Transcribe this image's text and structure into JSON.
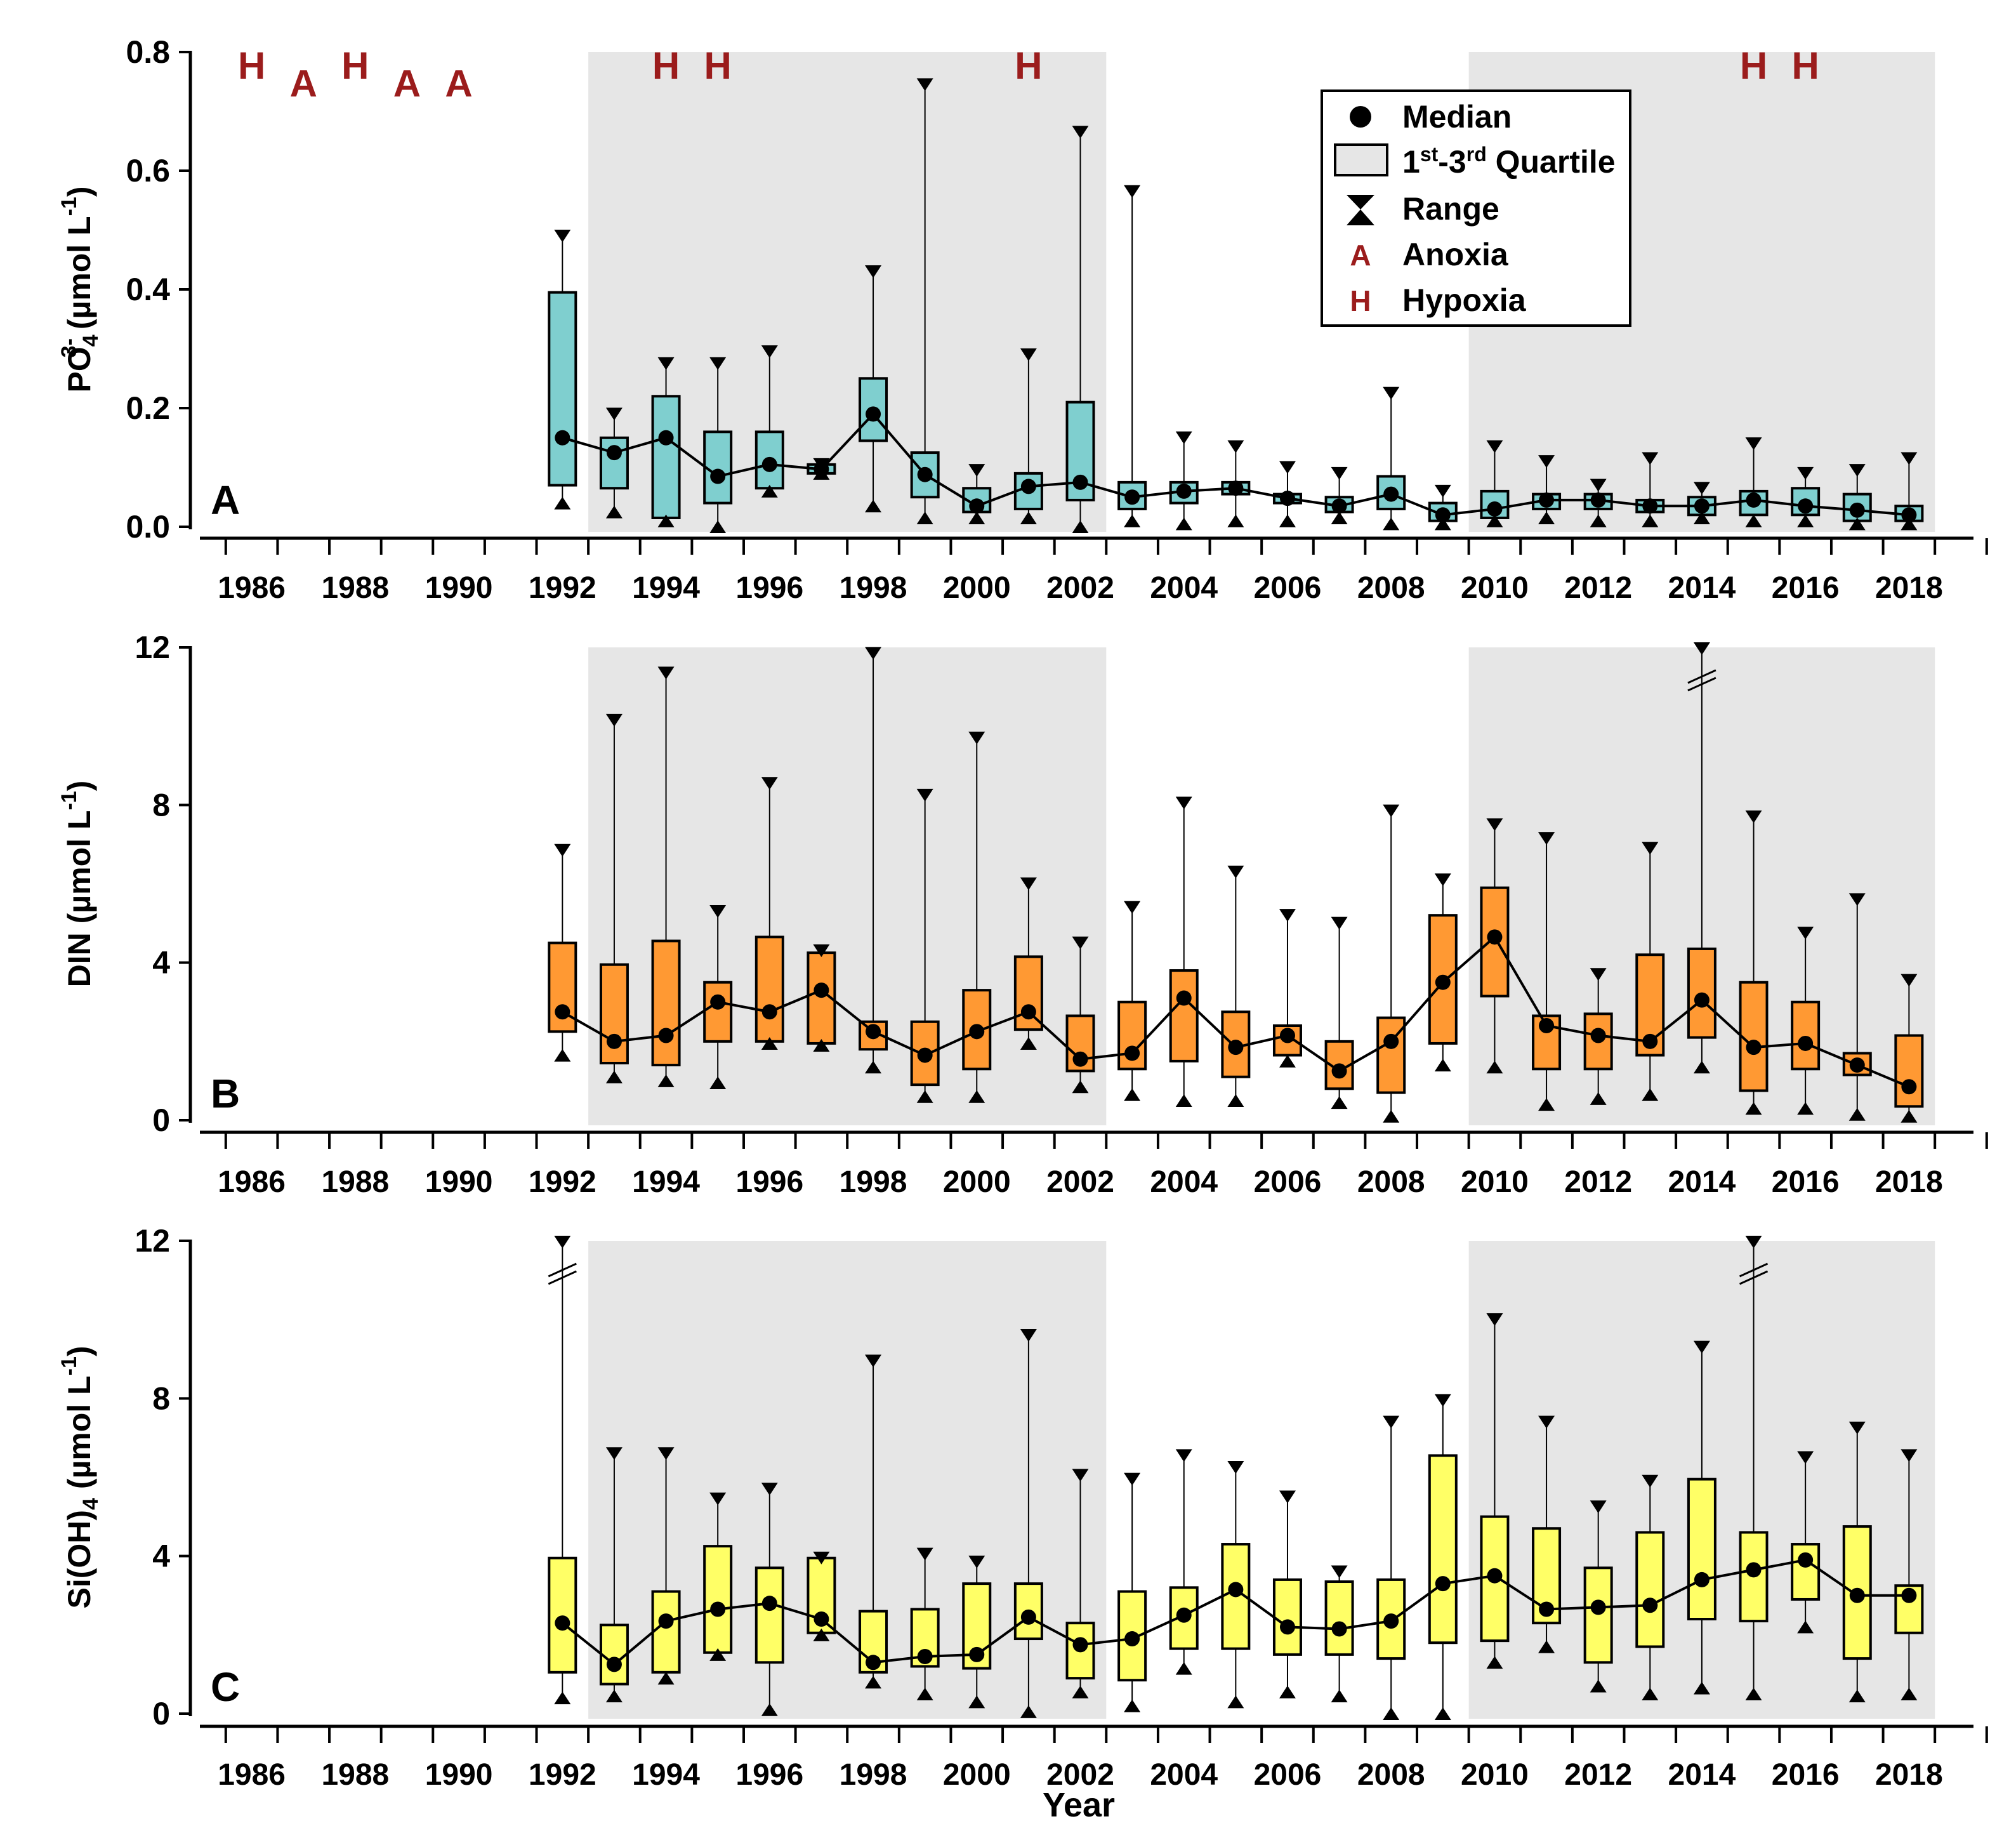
{
  "chart_data": [
    {
      "type": "box",
      "panel_label": "A",
      "ylabel_main": "PO",
      "ylabel_sub": "4",
      "ylabel_sup": "3-",
      "ylabel_rest": " (µmol L",
      "ylabel_unit_sup": "-1",
      "ylabel_close": ")",
      "ylim": [
        0,
        0.8
      ],
      "yticks": [
        "0.0",
        "0.2",
        "0.4",
        "0.6",
        "0.8"
      ],
      "ytick_values": [
        0,
        0.2,
        0.4,
        0.6,
        0.8
      ],
      "box_color": "#7fcfcf",
      "series": [
        {
          "year": 1992,
          "q1": 0.07,
          "q3": 0.395,
          "median": 0.15,
          "min": 0.04,
          "max": 0.49
        },
        {
          "year": 1993,
          "q1": 0.065,
          "q3": 0.15,
          "median": 0.125,
          "min": 0.025,
          "max": 0.19
        },
        {
          "year": 1994,
          "q1": 0.015,
          "q3": 0.22,
          "median": 0.15,
          "min": 0.01,
          "max": 0.275
        },
        {
          "year": 1995,
          "q1": 0.04,
          "q3": 0.16,
          "median": 0.085,
          "min": 0.0,
          "max": 0.275
        },
        {
          "year": 1996,
          "q1": 0.065,
          "q3": 0.16,
          "median": 0.105,
          "min": 0.06,
          "max": 0.295
        },
        {
          "year": 1997,
          "q1": 0.09,
          "q3": 0.105,
          "median": 0.097,
          "min": 0.09,
          "max": 0.105
        },
        {
          "year": 1998,
          "q1": 0.145,
          "q3": 0.25,
          "median": 0.19,
          "min": 0.035,
          "max": 0.43
        },
        {
          "year": 1999,
          "q1": 0.05,
          "q3": 0.125,
          "median": 0.088,
          "min": 0.015,
          "max": 0.745
        },
        {
          "year": 2000,
          "q1": 0.025,
          "q3": 0.065,
          "median": 0.035,
          "min": 0.015,
          "max": 0.095
        },
        {
          "year": 2001,
          "q1": 0.03,
          "q3": 0.09,
          "median": 0.068,
          "min": 0.015,
          "max": 0.29
        },
        {
          "year": 2002,
          "q1": 0.045,
          "q3": 0.21,
          "median": 0.075,
          "min": 0.0,
          "max": 0.665
        },
        {
          "year": 2003,
          "q1": 0.03,
          "q3": 0.075,
          "median": 0.05,
          "min": 0.01,
          "max": 0.565
        },
        {
          "year": 2004,
          "q1": 0.04,
          "q3": 0.075,
          "median": 0.06,
          "min": 0.005,
          "max": 0.15
        },
        {
          "year": 2005,
          "q1": 0.055,
          "q3": 0.075,
          "median": 0.065,
          "min": 0.01,
          "max": 0.135
        },
        {
          "year": 2006,
          "q1": 0.04,
          "q3": 0.055,
          "median": 0.048,
          "min": 0.01,
          "max": 0.1
        },
        {
          "year": 2007,
          "q1": 0.025,
          "q3": 0.05,
          "median": 0.035,
          "min": 0.015,
          "max": 0.09
        },
        {
          "year": 2008,
          "q1": 0.03,
          "q3": 0.085,
          "median": 0.055,
          "min": 0.005,
          "max": 0.225
        },
        {
          "year": 2009,
          "q1": 0.01,
          "q3": 0.04,
          "median": 0.02,
          "min": 0.005,
          "max": 0.06
        },
        {
          "year": 2010,
          "q1": 0.015,
          "q3": 0.06,
          "median": 0.03,
          "min": 0.01,
          "max": 0.135
        },
        {
          "year": 2011,
          "q1": 0.03,
          "q3": 0.055,
          "median": 0.045,
          "min": 0.015,
          "max": 0.11
        },
        {
          "year": 2012,
          "q1": 0.03,
          "q3": 0.055,
          "median": 0.045,
          "min": 0.01,
          "max": 0.07
        },
        {
          "year": 2013,
          "q1": 0.025,
          "q3": 0.045,
          "median": 0.035,
          "min": 0.01,
          "max": 0.115
        },
        {
          "year": 2014,
          "q1": 0.02,
          "q3": 0.05,
          "median": 0.035,
          "min": 0.015,
          "max": 0.065
        },
        {
          "year": 2015,
          "q1": 0.02,
          "q3": 0.06,
          "median": 0.045,
          "min": 0.01,
          "max": 0.14
        },
        {
          "year": 2016,
          "q1": 0.02,
          "q3": 0.065,
          "median": 0.035,
          "min": 0.01,
          "max": 0.09
        },
        {
          "year": 2017,
          "q1": 0.01,
          "q3": 0.055,
          "median": 0.028,
          "min": 0.005,
          "max": 0.095
        },
        {
          "year": 2018,
          "q1": 0.01,
          "q3": 0.035,
          "median": 0.02,
          "min": 0.005,
          "max": 0.115
        }
      ],
      "events": [
        {
          "year": 1986,
          "code": "H"
        },
        {
          "year": 1987,
          "code": "A"
        },
        {
          "year": 1988,
          "code": "H"
        },
        {
          "year": 1989,
          "code": "A"
        },
        {
          "year": 1990,
          "code": "A"
        },
        {
          "year": 1994,
          "code": "H"
        },
        {
          "year": 1995,
          "code": "H"
        },
        {
          "year": 2001,
          "code": "H"
        },
        {
          "year": 2015,
          "code": "H"
        },
        {
          "year": 2016,
          "code": "H"
        }
      ],
      "breaks": []
    },
    {
      "type": "box",
      "panel_label": "B",
      "ylabel_main": "DIN (µmol L",
      "ylabel_sub": "",
      "ylabel_sup": "",
      "ylabel_rest": "",
      "ylabel_unit_sup": "-1",
      "ylabel_close": ")",
      "ylim": [
        0,
        12
      ],
      "yticks": [
        "0",
        "4",
        "8",
        "12"
      ],
      "ytick_values": [
        0,
        4,
        8,
        12
      ],
      "box_color": "#ff9933",
      "series": [
        {
          "year": 1992,
          "q1": 2.25,
          "q3": 4.5,
          "median": 2.75,
          "min": 1.65,
          "max": 6.85
        },
        {
          "year": 1993,
          "q1": 1.45,
          "q3": 3.95,
          "median": 2.0,
          "min": 1.1,
          "max": 10.15
        },
        {
          "year": 1994,
          "q1": 1.4,
          "q3": 4.55,
          "median": 2.15,
          "min": 1.0,
          "max": 11.35
        },
        {
          "year": 1995,
          "q1": 2.0,
          "q3": 3.5,
          "median": 3.0,
          "min": 0.95,
          "max": 5.3
        },
        {
          "year": 1996,
          "q1": 2.0,
          "q3": 4.65,
          "median": 2.75,
          "min": 1.95,
          "max": 8.55
        },
        {
          "year": 1997,
          "q1": 1.95,
          "q3": 4.25,
          "median": 3.3,
          "min": 1.9,
          "max": 4.3
        },
        {
          "year": 1998,
          "q1": 1.8,
          "q3": 2.5,
          "median": 2.25,
          "min": 1.35,
          "max": 11.85
        },
        {
          "year": 1999,
          "q1": 0.9,
          "q3": 2.5,
          "median": 1.65,
          "min": 0.6,
          "max": 8.25
        },
        {
          "year": 2000,
          "q1": 1.3,
          "q3": 3.3,
          "median": 2.25,
          "min": 0.6,
          "max": 9.7
        },
        {
          "year": 2001,
          "q1": 2.3,
          "q3": 4.15,
          "median": 2.75,
          "min": 1.95,
          "max": 6.0
        },
        {
          "year": 2002,
          "q1": 1.25,
          "q3": 2.65,
          "median": 1.55,
          "min": 0.85,
          "max": 4.5
        },
        {
          "year": 2003,
          "q1": 1.3,
          "q3": 3.0,
          "median": 1.7,
          "min": 0.65,
          "max": 5.4
        },
        {
          "year": 2004,
          "q1": 1.5,
          "q3": 3.8,
          "median": 3.1,
          "min": 0.5,
          "max": 8.05
        },
        {
          "year": 2005,
          "q1": 1.1,
          "q3": 2.75,
          "median": 1.85,
          "min": 0.5,
          "max": 6.3
        },
        {
          "year": 2006,
          "q1": 1.65,
          "q3": 2.4,
          "median": 2.15,
          "min": 1.5,
          "max": 5.2
        },
        {
          "year": 2007,
          "q1": 0.8,
          "q3": 2.0,
          "median": 1.25,
          "min": 0.45,
          "max": 5.0
        },
        {
          "year": 2008,
          "q1": 0.7,
          "q3": 2.6,
          "median": 2.0,
          "min": 0.1,
          "max": 7.85
        },
        {
          "year": 2009,
          "q1": 1.95,
          "q3": 5.2,
          "median": 3.5,
          "min": 1.4,
          "max": 6.1
        },
        {
          "year": 2010,
          "q1": 3.15,
          "q3": 5.9,
          "median": 4.65,
          "min": 1.35,
          "max": 7.5
        },
        {
          "year": 2011,
          "q1": 1.3,
          "q3": 2.65,
          "median": 2.4,
          "min": 0.4,
          "max": 7.15
        },
        {
          "year": 2012,
          "q1": 1.3,
          "q3": 2.7,
          "median": 2.15,
          "min": 0.55,
          "max": 3.7
        },
        {
          "year": 2013,
          "q1": 1.65,
          "q3": 4.2,
          "median": 2.0,
          "min": 0.65,
          "max": 6.9
        },
        {
          "year": 2014,
          "q1": 2.1,
          "q3": 4.35,
          "median": 3.05,
          "min": 1.35,
          "max": 12.0
        },
        {
          "year": 2015,
          "q1": 0.75,
          "q3": 3.5,
          "median": 1.85,
          "min": 0.3,
          "max": 7.7
        },
        {
          "year": 2016,
          "q1": 1.3,
          "q3": 3.0,
          "median": 1.95,
          "min": 0.3,
          "max": 4.75
        },
        {
          "year": 2017,
          "q1": 1.15,
          "q3": 1.7,
          "median": 1.4,
          "min": 0.15,
          "max": 5.6
        },
        {
          "year": 2018,
          "q1": 0.35,
          "q3": 2.15,
          "median": 0.85,
          "min": 0.1,
          "max": 3.55
        }
      ],
      "events": [],
      "breaks": [
        2014
      ]
    },
    {
      "type": "box",
      "panel_label": "C",
      "ylabel_main": "Si(OH)",
      "ylabel_sub": "4",
      "ylabel_sup": "",
      "ylabel_rest": " (µmol L",
      "ylabel_unit_sup": "-1",
      "ylabel_close": ")",
      "ylim": [
        0,
        12
      ],
      "yticks": [
        "0",
        "4",
        "8",
        "12"
      ],
      "ytick_values": [
        0,
        4,
        8,
        12
      ],
      "box_color": "#ffff66",
      "series": [
        {
          "year": 1992,
          "q1": 1.05,
          "q3": 3.95,
          "median": 2.3,
          "min": 0.4,
          "max": 12.0
        },
        {
          "year": 1993,
          "q1": 0.75,
          "q3": 2.25,
          "median": 1.25,
          "min": 0.45,
          "max": 6.6
        },
        {
          "year": 1994,
          "q1": 1.05,
          "q3": 3.1,
          "median": 2.35,
          "min": 0.9,
          "max": 6.6
        },
        {
          "year": 1995,
          "q1": 1.55,
          "q3": 4.25,
          "median": 2.65,
          "min": 1.5,
          "max": 5.45
        },
        {
          "year": 1996,
          "q1": 1.3,
          "q3": 3.7,
          "median": 2.8,
          "min": 0.1,
          "max": 5.7
        },
        {
          "year": 1997,
          "q1": 2.05,
          "q3": 3.95,
          "median": 2.4,
          "min": 2.0,
          "max": 3.95
        },
        {
          "year": 1998,
          "q1": 1.05,
          "q3": 2.6,
          "median": 1.3,
          "min": 0.8,
          "max": 8.95
        },
        {
          "year": 1999,
          "q1": 1.2,
          "q3": 2.65,
          "median": 1.45,
          "min": 0.5,
          "max": 4.05
        },
        {
          "year": 2000,
          "q1": 1.15,
          "q3": 3.3,
          "median": 1.5,
          "min": 0.3,
          "max": 3.85
        },
        {
          "year": 2001,
          "q1": 1.9,
          "q3": 3.3,
          "median": 2.45,
          "min": 0.05,
          "max": 9.6
        },
        {
          "year": 2002,
          "q1": 0.9,
          "q3": 2.3,
          "median": 1.75,
          "min": 0.55,
          "max": 6.05
        },
        {
          "year": 2003,
          "q1": 0.85,
          "q3": 3.1,
          "median": 1.9,
          "min": 0.2,
          "max": 5.95
        },
        {
          "year": 2004,
          "q1": 1.65,
          "q3": 3.2,
          "median": 2.5,
          "min": 1.15,
          "max": 6.55
        },
        {
          "year": 2005,
          "q1": 1.65,
          "q3": 4.3,
          "median": 3.15,
          "min": 0.3,
          "max": 6.25
        },
        {
          "year": 2006,
          "q1": 1.5,
          "q3": 3.4,
          "median": 2.2,
          "min": 0.55,
          "max": 5.5
        },
        {
          "year": 2007,
          "q1": 1.5,
          "q3": 3.35,
          "median": 2.15,
          "min": 0.45,
          "max": 3.6
        },
        {
          "year": 2008,
          "q1": 1.4,
          "q3": 3.4,
          "median": 2.35,
          "min": 0.0,
          "max": 7.4
        },
        {
          "year": 2009,
          "q1": 1.8,
          "q3": 6.55,
          "median": 3.3,
          "min": 0.0,
          "max": 7.95
        },
        {
          "year": 2010,
          "q1": 1.85,
          "q3": 5.0,
          "median": 3.5,
          "min": 1.3,
          "max": 10.0
        },
        {
          "year": 2011,
          "q1": 2.3,
          "q3": 4.7,
          "median": 2.65,
          "min": 1.7,
          "max": 7.4
        },
        {
          "year": 2012,
          "q1": 1.3,
          "q3": 3.7,
          "median": 2.7,
          "min": 0.7,
          "max": 5.25
        },
        {
          "year": 2013,
          "q1": 1.7,
          "q3": 4.6,
          "median": 2.75,
          "min": 0.5,
          "max": 5.9
        },
        {
          "year": 2014,
          "q1": 2.4,
          "q3": 5.95,
          "median": 3.4,
          "min": 0.65,
          "max": 9.3
        },
        {
          "year": 2015,
          "q1": 2.35,
          "q3": 4.6,
          "median": 3.65,
          "min": 0.5,
          "max": 12.0
        },
        {
          "year": 2016,
          "q1": 2.9,
          "q3": 4.3,
          "median": 3.9,
          "min": 2.2,
          "max": 6.5
        },
        {
          "year": 2017,
          "q1": 1.4,
          "q3": 4.75,
          "median": 3.0,
          "min": 0.45,
          "max": 7.25
        },
        {
          "year": 2018,
          "q1": 2.05,
          "q3": 3.25,
          "median": 3.0,
          "min": 0.5,
          "max": 6.55
        }
      ],
      "events": [],
      "breaks": [
        1992,
        2015
      ]
    }
  ],
  "shaded_periods": [
    [
      1992.5,
      2002.5
    ],
    [
      2009.5,
      2018.5
    ]
  ],
  "xticks": [
    "1986",
    "1988",
    "1990",
    "1992",
    "1994",
    "1996",
    "1998",
    "2000",
    "2002",
    "2004",
    "2006",
    "2008",
    "2010",
    "2012",
    "2014",
    "2016",
    "2018"
  ],
  "xtick_values": [
    1986,
    1988,
    1990,
    1992,
    1994,
    1996,
    1998,
    2000,
    2002,
    2004,
    2006,
    2008,
    2010,
    2012,
    2014,
    2016,
    2018
  ],
  "xlim": [
    1985,
    2019
  ],
  "xlabel": "Year",
  "legend": {
    "median": "Median",
    "quartile_main": "1",
    "quartile_sup1": "st",
    "quartile_mid": "-3",
    "quartile_sup2": "rd",
    "quartile_end": " Quartile",
    "range": "Range",
    "anoxia_symbol": "A",
    "anoxia": "Anoxia",
    "hypoxia_symbol": "H",
    "hypoxia": "Hypoxia"
  },
  "colors": {
    "event": "#9b1c1c",
    "period": "#e6e6e6"
  }
}
